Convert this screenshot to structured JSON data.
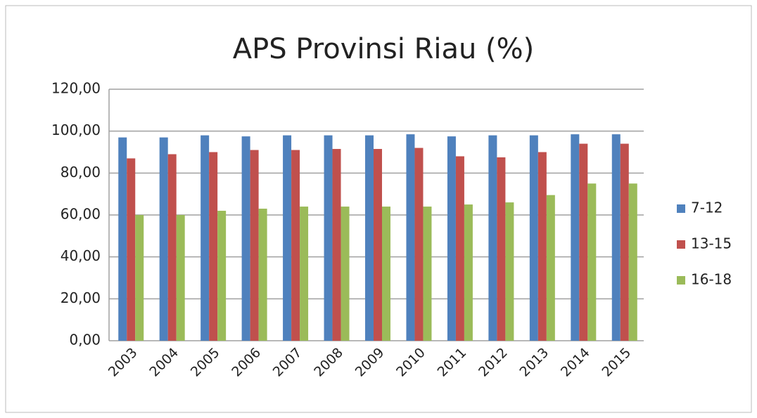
{
  "chart_data": {
    "type": "bar",
    "title": "APS Provinsi Riau (%)",
    "categories": [
      "2003",
      "2004",
      "2005",
      "2006",
      "2007",
      "2008",
      "2009",
      "2010",
      "2011",
      "2012",
      "2013",
      "2014",
      "2015"
    ],
    "series": [
      {
        "name": "7-12",
        "color": "#4f81bd",
        "values": [
          97,
          97,
          98,
          97.5,
          98,
          98,
          98,
          98.5,
          97.5,
          98,
          98,
          98.5,
          98.5
        ]
      },
      {
        "name": "13-15",
        "color": "#c0504d",
        "values": [
          87,
          89,
          90,
          91,
          91,
          91.5,
          91.5,
          92,
          88,
          87.5,
          90,
          94,
          94
        ]
      },
      {
        "name": "16-18",
        "color": "#9bbb59",
        "values": [
          60,
          60,
          62,
          63,
          64,
          64,
          64,
          64,
          65,
          66,
          69.5,
          75,
          75
        ]
      }
    ],
    "ylim": [
      0,
      120
    ],
    "yticks": [
      {
        "value": 0,
        "label": "0,00"
      },
      {
        "value": 20,
        "label": "20,00"
      },
      {
        "value": 40,
        "label": "40,00"
      },
      {
        "value": 60,
        "label": "60,00"
      },
      {
        "value": 80,
        "label": "80,00"
      },
      {
        "value": 100,
        "label": "100,00"
      },
      {
        "value": 120,
        "label": "120,00"
      }
    ],
    "grid": true,
    "legend": "right"
  }
}
